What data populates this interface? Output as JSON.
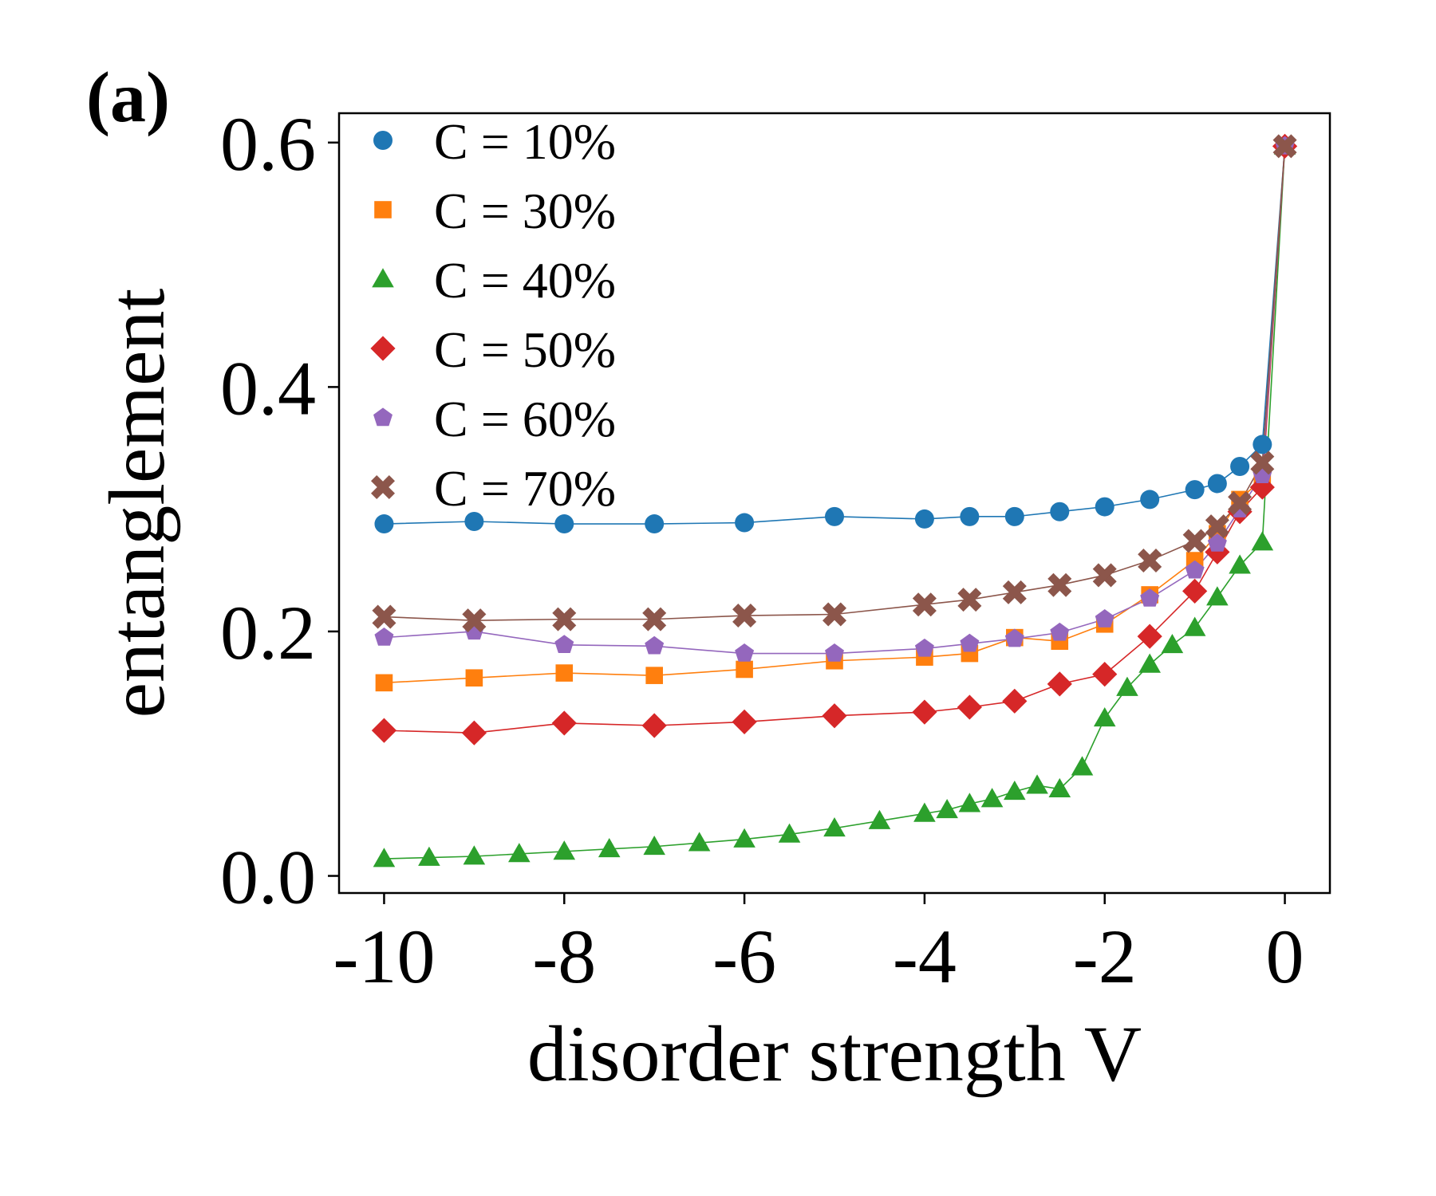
{
  "panel_label": "(a)",
  "chart_data": {
    "type": "line",
    "xlabel": "disorder strength V",
    "ylabel": "entanglement",
    "xlim": [
      -10.5,
      0.5
    ],
    "ylim": [
      -0.014,
      0.624
    ],
    "xticks": [
      -10,
      -8,
      -6,
      -4,
      -2,
      0
    ],
    "xtick_labels": [
      "-10",
      "-8",
      "-6",
      "-4",
      "-2",
      "0"
    ],
    "yticks": [
      0.0,
      0.2,
      0.4,
      0.6
    ],
    "ytick_labels": [
      "0.0",
      "0.2",
      "0.4",
      "0.6"
    ],
    "legend_position": "upper-left",
    "series": [
      {
        "name": "C = 10%",
        "color": "#1f77b4",
        "marker": "circle",
        "x": [
          -10,
          -9,
          -8,
          -7,
          -6,
          -5,
          -4,
          -3.5,
          -3,
          -2.5,
          -2,
          -1.5,
          -1,
          -0.75,
          -0.5,
          -0.25,
          0
        ],
        "y": [
          0.288,
          0.29,
          0.288,
          0.288,
          0.289,
          0.294,
          0.292,
          0.294,
          0.294,
          0.298,
          0.302,
          0.308,
          0.316,
          0.321,
          0.335,
          0.353,
          0.597
        ]
      },
      {
        "name": "C = 30%",
        "color": "#ff7f0e",
        "marker": "square",
        "x": [
          -10,
          -9,
          -8,
          -7,
          -6,
          -5,
          -4,
          -3.5,
          -3,
          -2.5,
          -2,
          -1.5,
          -1,
          -0.75,
          -0.5,
          -0.25,
          0
        ],
        "y": [
          0.158,
          0.162,
          0.166,
          0.164,
          0.169,
          0.176,
          0.179,
          0.182,
          0.195,
          0.192,
          0.206,
          0.23,
          0.258,
          0.28,
          0.308,
          0.325,
          0.597
        ]
      },
      {
        "name": "C = 40%",
        "color": "#2ca02c",
        "marker": "triangle",
        "x": [
          -10,
          -9.5,
          -9,
          -8.5,
          -8,
          -7.5,
          -7,
          -6.5,
          -6,
          -5.5,
          -5,
          -4.5,
          -4,
          -3.75,
          -3.5,
          -3.25,
          -3,
          -2.75,
          -2.5,
          -2.25,
          -2,
          -1.75,
          -1.5,
          -1.25,
          -1,
          -0.75,
          -0.5,
          -0.25,
          0
        ],
        "y": [
          0.014,
          0.015,
          0.016,
          0.018,
          0.02,
          0.022,
          0.024,
          0.027,
          0.03,
          0.034,
          0.039,
          0.045,
          0.051,
          0.054,
          0.059,
          0.063,
          0.069,
          0.074,
          0.071,
          0.089,
          0.129,
          0.154,
          0.173,
          0.189,
          0.203,
          0.228,
          0.254,
          0.273,
          0.597
        ]
      },
      {
        "name": "C = 50%",
        "color": "#d62728",
        "marker": "diamond",
        "x": [
          -10,
          -9,
          -8,
          -7,
          -6,
          -5,
          -4,
          -3.5,
          -3,
          -2.5,
          -2,
          -1.5,
          -1,
          -0.75,
          -0.5,
          -0.25,
          0
        ],
        "y": [
          0.119,
          0.117,
          0.125,
          0.123,
          0.126,
          0.131,
          0.134,
          0.138,
          0.143,
          0.157,
          0.165,
          0.196,
          0.233,
          0.265,
          0.298,
          0.318,
          0.597
        ]
      },
      {
        "name": "C = 60%",
        "color": "#9467bd",
        "marker": "pentagon",
        "x": [
          -10,
          -9,
          -8,
          -7,
          -6,
          -5,
          -4,
          -3.5,
          -3,
          -2.5,
          -2,
          -1.5,
          -1,
          -0.75,
          -0.5,
          -0.25,
          0
        ],
        "y": [
          0.195,
          0.2,
          0.189,
          0.188,
          0.182,
          0.182,
          0.186,
          0.19,
          0.194,
          0.199,
          0.21,
          0.227,
          0.25,
          0.272,
          0.3,
          0.328,
          0.597
        ]
      },
      {
        "name": "C = 70%",
        "color": "#8c564b",
        "marker": "x",
        "x": [
          -10,
          -9,
          -8,
          -7,
          -6,
          -5,
          -4,
          -3.5,
          -3,
          -2.5,
          -2,
          -1.5,
          -1,
          -0.75,
          -0.5,
          -0.25,
          0
        ],
        "y": [
          0.212,
          0.209,
          0.21,
          0.21,
          0.213,
          0.214,
          0.222,
          0.226,
          0.232,
          0.238,
          0.246,
          0.258,
          0.274,
          0.286,
          0.305,
          0.338,
          0.597
        ]
      }
    ]
  }
}
